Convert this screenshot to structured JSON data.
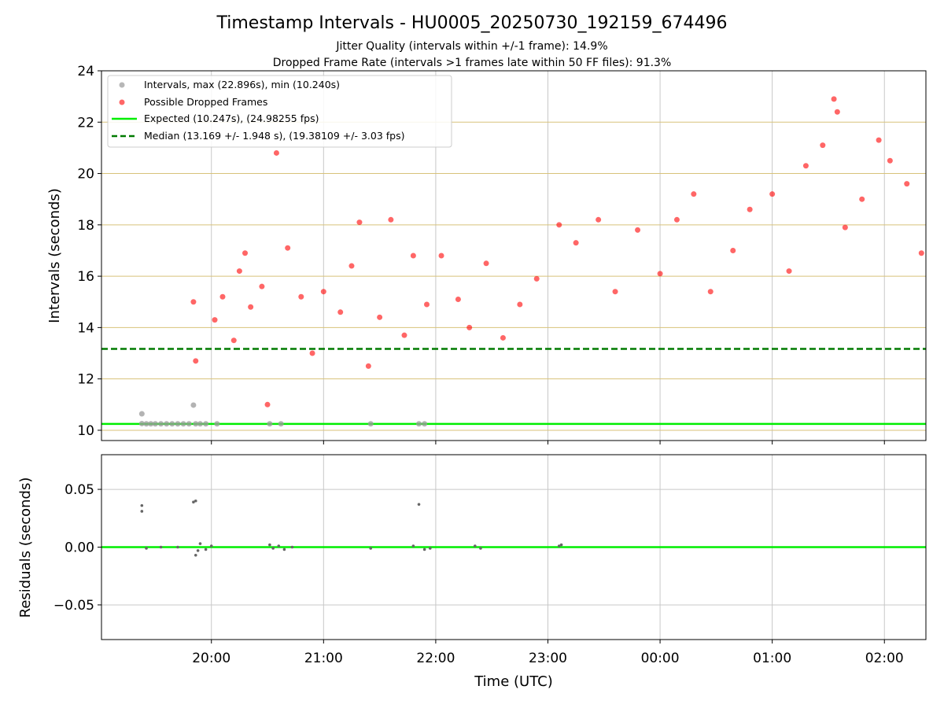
{
  "figure": {
    "title": "Timestamp Intervals - HU0005_20250730_192159_674496",
    "subtitle_1": "Jitter Quality (intervals within +/-1 frame): 14.9%",
    "subtitle_2": "Dropped Frame Rate (intervals >1 frames late within 50 FF files): 91.3%"
  },
  "colors": {
    "intervals": "#999999",
    "dropped": "#ff0000",
    "expected": "#00ee00",
    "median": "#007a00",
    "residuals": "#666666",
    "grid": "#c8c8c8",
    "band": "#d8c27a"
  },
  "chart_data": [
    {
      "type": "scatter",
      "ylabel": "Intervals (seconds)",
      "ylim": [
        9.6,
        24
      ],
      "xlim_hours": [
        19.02,
        26.37
      ],
      "y_ticks": [
        10,
        12,
        14,
        16,
        18,
        20,
        22,
        24
      ],
      "y_tick_labels": [
        "10",
        "12",
        "14",
        "16",
        "18",
        "20",
        "22",
        "24"
      ],
      "legend": {
        "position": "top-left",
        "entries": [
          "Intervals, max (22.896s), min (10.240s)",
          "Possible Dropped Frames",
          "Expected (10.247s), (24.98255 fps)",
          "Median (13.169 +/- 1.948 s), (19.38109 +/- 3.03 fps)"
        ]
      },
      "expected_line": 10.247,
      "median_line": 13.169,
      "series": [
        {
          "name": "Intervals, max (22.896s), min (10.240s)",
          "x_hours": [
            19.38,
            19.38,
            19.42,
            19.46,
            19.5,
            19.55,
            19.6,
            19.65,
            19.7,
            19.75,
            19.8,
            19.84,
            19.86,
            19.9,
            19.95,
            20.05,
            20.52,
            20.62,
            21.42,
            21.85,
            21.9
          ],
          "y": [
            10.64,
            10.26,
            10.25,
            10.25,
            10.25,
            10.25,
            10.25,
            10.25,
            10.25,
            10.25,
            10.25,
            10.98,
            10.25,
            10.25,
            10.25,
            10.25,
            10.25,
            10.25,
            10.25,
            10.25,
            10.25
          ]
        },
        {
          "name": "Possible Dropped Frames",
          "x_hours": [
            19.84,
            19.86,
            20.03,
            20.1,
            20.2,
            20.25,
            20.3,
            20.35,
            20.45,
            20.5,
            20.58,
            20.68,
            20.8,
            20.9,
            21.0,
            21.15,
            21.25,
            21.32,
            21.4,
            21.5,
            21.6,
            21.72,
            21.8,
            21.92,
            22.05,
            22.2,
            22.3,
            22.45,
            22.6,
            22.75,
            22.9,
            23.1,
            23.25,
            23.45,
            23.6,
            23.8,
            24.0,
            24.15,
            24.3,
            24.45,
            24.65,
            24.8,
            25.0,
            25.15,
            25.3,
            25.45,
            25.55,
            25.58,
            25.65,
            25.8,
            25.95,
            26.05,
            26.2,
            26.33
          ],
          "y": [
            15.0,
            12.7,
            14.3,
            15.2,
            13.5,
            16.2,
            16.9,
            14.8,
            15.6,
            11.0,
            20.8,
            17.1,
            15.2,
            13.0,
            15.4,
            14.6,
            16.4,
            18.1,
            12.5,
            14.4,
            18.2,
            13.7,
            16.8,
            14.9,
            16.8,
            15.1,
            14.0,
            16.5,
            13.6,
            14.9,
            15.9,
            18.0,
            17.3,
            18.2,
            15.4,
            17.8,
            16.1,
            18.2,
            19.2,
            15.4,
            17.0,
            18.6,
            19.2,
            16.2,
            20.3,
            21.1,
            22.9,
            22.4,
            17.9,
            19.0,
            21.3,
            20.5,
            19.6,
            16.9
          ]
        }
      ]
    },
    {
      "type": "scatter",
      "ylabel": "Residuals (seconds)",
      "xlabel": "Time (UTC)",
      "ylim": [
        -0.08,
        0.08
      ],
      "y_ticks": [
        0.05,
        0.0,
        -0.05
      ],
      "y_tick_labels": [
        "0.05",
        "0.00",
        "−0.05"
      ],
      "x_ticks_hours": [
        20,
        21,
        22,
        23,
        24,
        25,
        26
      ],
      "x_tick_labels": [
        "20:00",
        "21:00",
        "22:00",
        "23:00",
        "00:00",
        "01:00",
        "02:00"
      ],
      "zero_line": 0.0,
      "series": [
        {
          "name": "Residuals",
          "x_hours": [
            19.38,
            19.38,
            19.42,
            19.55,
            19.7,
            19.84,
            19.86,
            19.86,
            19.88,
            19.9,
            19.95,
            20.0,
            20.52,
            20.55,
            20.6,
            20.65,
            20.72,
            21.42,
            21.8,
            21.85,
            21.9,
            21.95,
            22.35,
            22.4,
            23.1,
            23.12
          ],
          "y": [
            0.036,
            0.031,
            -0.001,
            0.0,
            0.0,
            0.039,
            0.04,
            -0.007,
            -0.003,
            0.003,
            -0.002,
            0.001,
            0.002,
            -0.001,
            0.001,
            -0.002,
            0.0,
            -0.001,
            0.001,
            0.037,
            -0.002,
            -0.001,
            0.001,
            -0.001,
            0.001,
            0.002
          ]
        }
      ]
    }
  ]
}
